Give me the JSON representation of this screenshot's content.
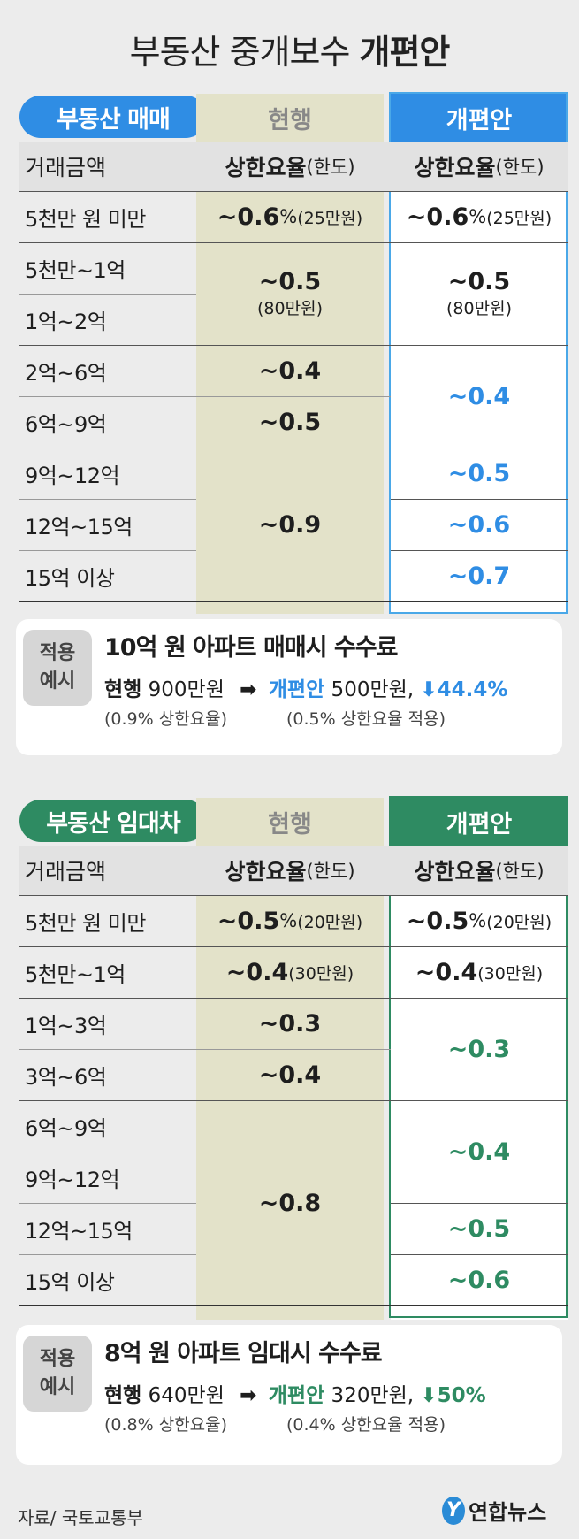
{
  "title": {
    "normal": "부동산 중개보수 ",
    "bold": "개편안"
  },
  "colors": {
    "blue": "#2f8de4",
    "green": "#2e8b62",
    "olive_bg": "#e3e2c9",
    "gray_header": "#d9d9d9"
  },
  "sale": {
    "label": "부동산 매매",
    "current_label": "현행",
    "new_label": "개편안",
    "col_amount": "거래금액",
    "col_rate": "상한요율",
    "col_rate_suffix": "(한도)",
    "rows": [
      "5천만 원 미만",
      "5천만~1억",
      "1억~2억",
      "2억~6억",
      "6억~9억",
      "9억~12억",
      "12억~15억",
      "15억 이상"
    ],
    "current": [
      {
        "rate": "~0.6",
        "pct": "%",
        "limit": " (25만원)"
      },
      {
        "rate": "~0.5",
        "limit": "(80만원)"
      },
      {
        "rate": "~0.4"
      },
      {
        "rate": "~0.5"
      },
      {
        "rate": "~0.9"
      }
    ],
    "new": [
      {
        "rate": "~0.6",
        "pct": "%",
        "limit": " (25만원)"
      },
      {
        "rate": "~0.5",
        "limit": "(80만원)"
      },
      {
        "rate": "~0.4"
      },
      {
        "rate": "~0.5"
      },
      {
        "rate": "~0.6"
      },
      {
        "rate": "~0.7"
      }
    ],
    "example": {
      "badge1": "적용",
      "badge2": "예시",
      "title": "10억 원 아파트 매매시 수수료",
      "cur_label": "현행",
      "cur_value": " 900만원",
      "arrow": "➡",
      "new_label": "개편안",
      "new_value": " 500만원,",
      "down": "⬇44.4%",
      "cur_note": "(0.9% 상한요율)",
      "new_note": "(0.5% 상한요율 적용)"
    }
  },
  "lease": {
    "label": "부동산 임대차",
    "current_label": "현행",
    "new_label": "개편안",
    "col_amount": "거래금액",
    "col_rate": "상한요율",
    "col_rate_suffix": "(한도)",
    "rows": [
      "5천만 원 미만",
      "5천만~1억",
      "1억~3억",
      "3억~6억",
      "6억~9억",
      "9억~12억",
      "12억~15억",
      "15억 이상"
    ],
    "current": [
      {
        "rate": "~0.5",
        "pct": "%",
        "limit": " (20만원)"
      },
      {
        "rate": "~0.4",
        "limit": " (30만원)"
      },
      {
        "rate": "~0.3"
      },
      {
        "rate": "~0.4"
      },
      {
        "rate": "~0.8"
      }
    ],
    "new": [
      {
        "rate": "~0.5",
        "pct": "%",
        "limit": " (20만원)"
      },
      {
        "rate": "~0.4",
        "limit": " (30만원)"
      },
      {
        "rate": "~0.3"
      },
      {
        "rate": "~0.4"
      },
      {
        "rate": "~0.5"
      },
      {
        "rate": "~0.6"
      }
    ],
    "example": {
      "badge1": "적용",
      "badge2": "예시",
      "title": "8억 원 아파트 임대시 수수료",
      "cur_label": "현행",
      "cur_value": " 640만원",
      "arrow": "➡",
      "new_label": "개편안",
      "new_value": " 320만원,",
      "down": "⬇50%",
      "cur_note": "(0.8% 상한요율)",
      "new_note": "(0.4% 상한요율 적용)"
    }
  },
  "source": "자료/ 국토교통부",
  "logo": {
    "mark": "Y",
    "text": "연합뉴스"
  }
}
